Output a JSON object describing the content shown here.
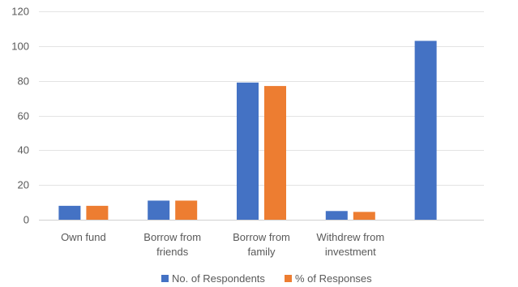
{
  "chart_data": {
    "type": "bar",
    "categories": [
      [
        "Own fund"
      ],
      [
        "Borrow from",
        "friends"
      ],
      [
        "Borrow from",
        "family"
      ],
      [
        "Withdrew from",
        "investment"
      ],
      [
        ""
      ]
    ],
    "series": [
      {
        "name": "No. of Respondents",
        "color": "#4472C4",
        "values": [
          8,
          11,
          79,
          5,
          103
        ]
      },
      {
        "name": "% of Responses",
        "color": "#ED7D31",
        "values": [
          8,
          11,
          77,
          4.5,
          null
        ]
      }
    ],
    "ylim": [
      0,
      120
    ],
    "yticks": [
      0,
      20,
      40,
      60,
      80,
      100,
      120
    ],
    "grid": true,
    "legend": "bottom",
    "title": "",
    "xlabel": "",
    "ylabel": ""
  }
}
